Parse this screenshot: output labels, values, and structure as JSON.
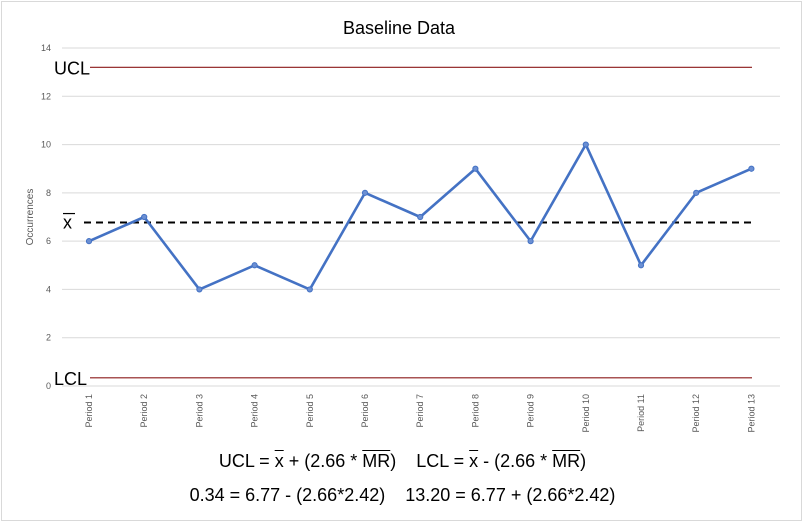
{
  "chart_data": {
    "type": "line",
    "title": "Baseline Data",
    "xlabel": "",
    "ylabel": "Occurrences",
    "categories": [
      "Period 1",
      "Period 2",
      "Period 3",
      "Period 4",
      "Period 5",
      "Period 6",
      "Period 7",
      "Period 8",
      "Period 9",
      "Period 10",
      "Period 11",
      "Period 12",
      "Period 13"
    ],
    "series": [
      {
        "values": [
          6,
          7,
          4,
          5,
          4,
          8,
          7,
          9,
          6,
          10,
          5,
          8,
          9
        ],
        "color": "#4472c4"
      }
    ],
    "ylim": [
      0,
      14
    ],
    "yticks": [
      "0",
      "2",
      "4",
      "6",
      "8",
      "10",
      "12",
      "14"
    ],
    "grid": true,
    "control_lines": {
      "ucl": {
        "label": "UCL",
        "value": 13.2,
        "color": "#8b1a1a"
      },
      "mean": {
        "label": "x",
        "value": 6.77,
        "color": "#000000"
      },
      "lcl": {
        "label": "LCL",
        "value": 0.34,
        "color": "#8b1a1a"
      }
    }
  },
  "formulas": {
    "line1_ucl_prefix": "UCL = ",
    "line1_ucl_x": "x",
    "line1_ucl_mid": " + (2.66 * ",
    "line1_ucl_mr": "MR",
    "line1_ucl_end": ")",
    "line1_lcl_prefix": "LCL = ",
    "line1_lcl_x": "x",
    "line1_lcl_mid": " - (2.66 * ",
    "line1_lcl_mr": "MR",
    "line1_lcl_end": ")",
    "line2": "0.34 = 6.77 - (2.66*2.42)    13.20 = 6.77 + (2.66*2.42)"
  }
}
